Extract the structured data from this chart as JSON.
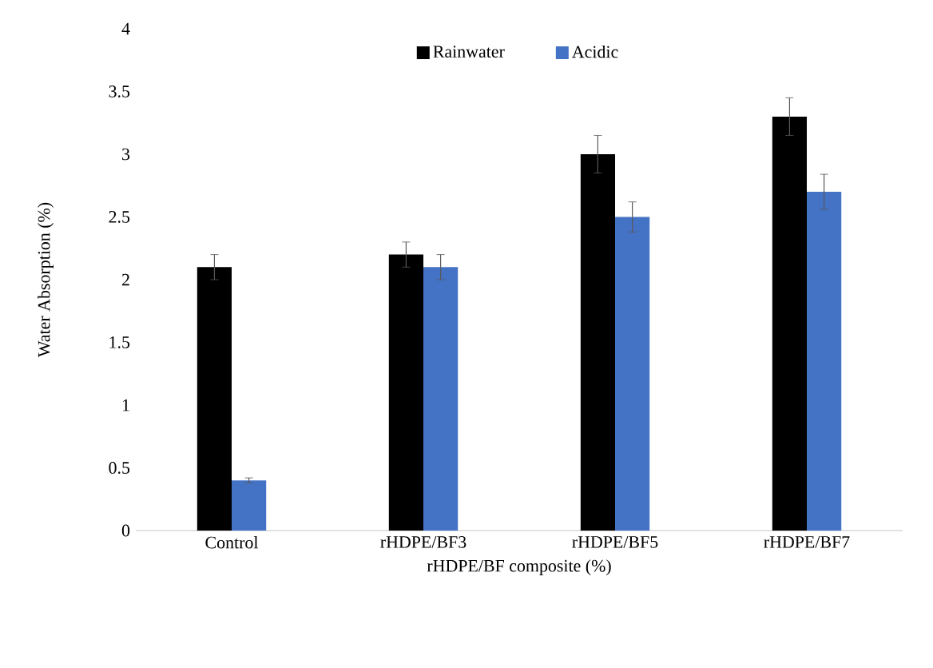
{
  "chart_data": {
    "type": "bar",
    "xlabel": "rHDPE/BF composite (%)",
    "ylabel": "Water Absorption (%)",
    "categories": [
      "Control",
      "rHDPE/BF3",
      "rHDPE/BF5",
      "rHDPE/BF7"
    ],
    "series": [
      {
        "name": "Rainwater",
        "color": "#000000",
        "values": [
          2.1,
          2.2,
          3.0,
          3.3
        ],
        "errors": [
          0.1,
          0.1,
          0.15,
          0.15
        ]
      },
      {
        "name": "Acidic",
        "color": "#4472c4",
        "values": [
          0.4,
          2.1,
          2.5,
          2.7
        ],
        "errors": [
          0.02,
          0.1,
          0.12,
          0.14
        ]
      }
    ],
    "ylim": [
      0,
      4
    ],
    "yticks": [
      0,
      0.5,
      1,
      1.5,
      2,
      2.5,
      3,
      3.5,
      4
    ],
    "legend": "top",
    "grid": false
  }
}
